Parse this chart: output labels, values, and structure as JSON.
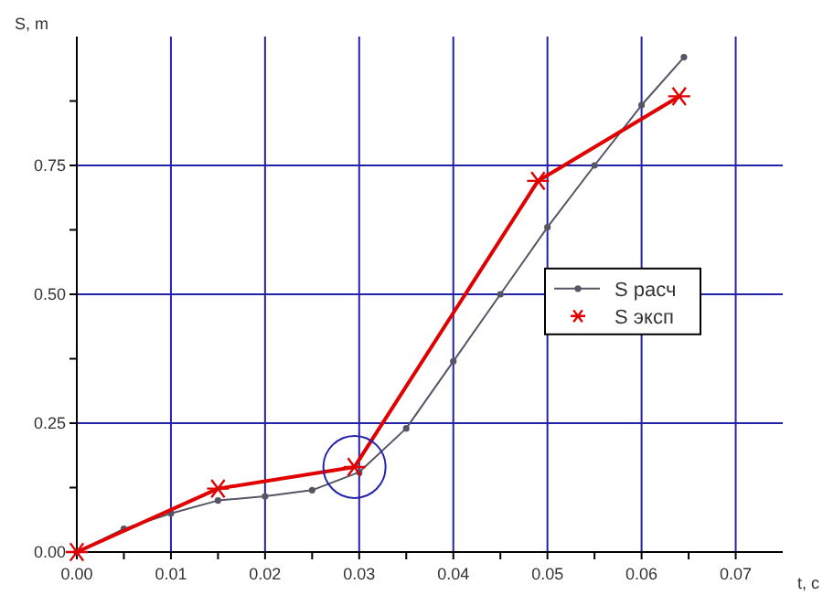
{
  "chart_data": {
    "type": "line",
    "xlabel": "t, c",
    "ylabel": "S, m",
    "xlim": [
      0,
      0.075
    ],
    "ylim": [
      0,
      1
    ],
    "xticks": [
      {
        "value": 0,
        "label": "0.00"
      },
      {
        "value": 0.005,
        "label": null
      },
      {
        "value": 0.01,
        "label": "0.01"
      },
      {
        "value": 0.015,
        "label": null
      },
      {
        "value": 0.02,
        "label": "0.02"
      },
      {
        "value": 0.025,
        "label": null
      },
      {
        "value": 0.03,
        "label": "0.03"
      },
      {
        "value": 0.035,
        "label": null
      },
      {
        "value": 0.04,
        "label": "0.04"
      },
      {
        "value": 0.045,
        "label": null
      },
      {
        "value": 0.05,
        "label": "0.05"
      },
      {
        "value": 0.055,
        "label": null
      },
      {
        "value": 0.06,
        "label": "0.06"
      },
      {
        "value": 0.065,
        "label": null
      },
      {
        "value": 0.07,
        "label": "0.07"
      }
    ],
    "yticks": [
      {
        "value": 0,
        "label": "0.00"
      },
      {
        "value": 0.125,
        "label": null
      },
      {
        "value": 0.25,
        "label": "0.25"
      },
      {
        "value": 0.375,
        "label": null
      },
      {
        "value": 0.5,
        "label": "0.50"
      },
      {
        "value": 0.625,
        "label": null
      },
      {
        "value": 0.75,
        "label": "0.75"
      },
      {
        "value": 0.875,
        "label": null
      }
    ],
    "grid": true,
    "legend": "right",
    "series": [
      {
        "name": "S расч",
        "color": "#555566",
        "marker": "circle",
        "x": [
          0,
          0.005,
          0.01,
          0.015,
          0.02,
          0.025,
          0.03,
          0.035,
          0.04,
          0.045,
          0.05,
          0.055,
          0.06,
          0.0645
        ],
        "values": [
          0,
          0.045,
          0.075,
          0.1,
          0.108,
          0.12,
          0.155,
          0.24,
          0.37,
          0.5,
          0.63,
          0.75,
          0.867,
          0.96
        ]
      },
      {
        "name": "S эксп",
        "color": "#e00000",
        "marker": "cross",
        "x": [
          0,
          0.015,
          0.0295,
          0.049,
          0.064
        ],
        "values": [
          0,
          0.123,
          0.165,
          0.72,
          0.884
        ]
      }
    ]
  }
}
